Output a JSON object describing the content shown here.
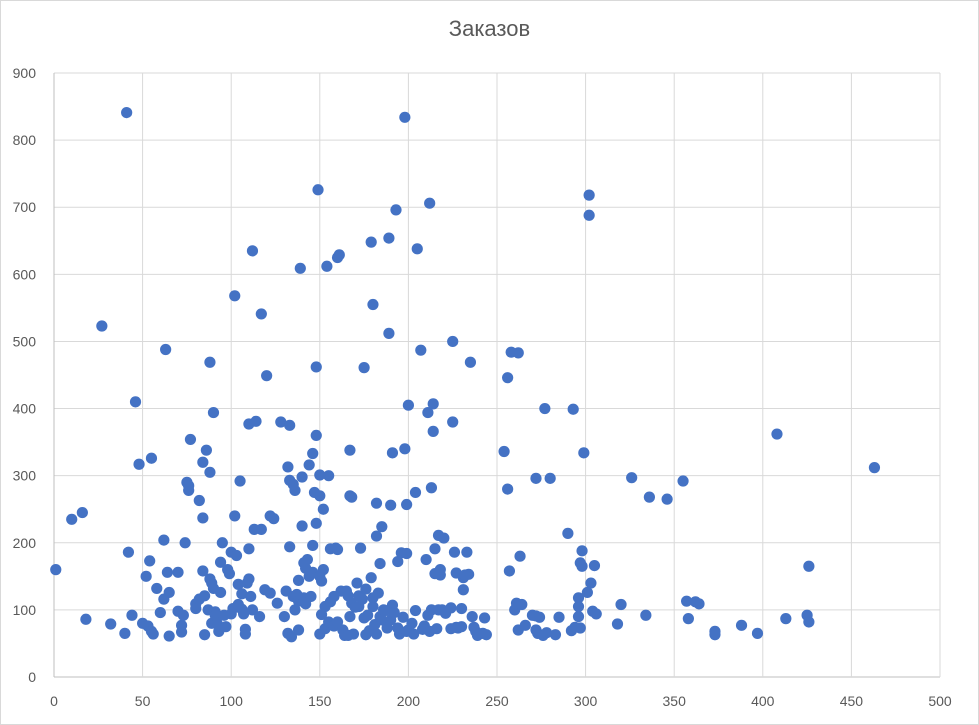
{
  "chart_data": {
    "type": "scatter",
    "title": "Заказов",
    "xlabel": "",
    "ylabel": "",
    "xlim": [
      0,
      500
    ],
    "ylim": [
      0,
      900
    ],
    "x_ticks": [
      0,
      50,
      100,
      150,
      200,
      250,
      300,
      350,
      400,
      450,
      500
    ],
    "y_ticks": [
      0,
      100,
      200,
      300,
      400,
      500,
      600,
      700,
      800,
      900
    ],
    "grid": true,
    "legend": "none",
    "marker_color": "#4472C4",
    "points": [
      [
        1,
        160
      ],
      [
        10,
        235
      ],
      [
        16,
        245
      ],
      [
        18,
        86
      ],
      [
        27,
        523
      ],
      [
        32,
        79
      ],
      [
        40,
        65
      ],
      [
        41,
        841
      ],
      [
        42,
        186
      ],
      [
        44,
        92
      ],
      [
        46,
        410
      ],
      [
        48,
        317
      ],
      [
        50,
        80
      ],
      [
        52,
        150
      ],
      [
        53,
        76
      ],
      [
        54,
        173
      ],
      [
        55,
        68
      ],
      [
        55,
        326
      ],
      [
        56,
        64
      ],
      [
        58,
        132
      ],
      [
        60,
        96
      ],
      [
        62,
        204
      ],
      [
        62,
        116
      ],
      [
        63,
        488
      ],
      [
        64,
        156
      ],
      [
        65,
        126
      ],
      [
        65,
        61
      ],
      [
        70,
        98
      ],
      [
        70,
        156
      ],
      [
        72,
        67
      ],
      [
        72,
        77
      ],
      [
        73,
        92
      ],
      [
        74,
        200
      ],
      [
        75,
        290
      ],
      [
        76,
        278
      ],
      [
        76,
        285
      ],
      [
        77,
        354
      ],
      [
        80,
        109
      ],
      [
        80,
        102
      ],
      [
        82,
        116
      ],
      [
        82,
        263
      ],
      [
        84,
        320
      ],
      [
        84,
        237
      ],
      [
        84,
        158
      ],
      [
        85,
        63
      ],
      [
        85,
        121
      ],
      [
        86,
        338
      ],
      [
        87,
        100
      ],
      [
        88,
        305
      ],
      [
        88,
        469
      ],
      [
        88,
        146
      ],
      [
        89,
        140
      ],
      [
        89,
        80
      ],
      [
        90,
        132
      ],
      [
        90,
        394
      ],
      [
        91,
        97
      ],
      [
        91,
        92
      ],
      [
        92,
        80
      ],
      [
        93,
        68
      ],
      [
        94,
        171
      ],
      [
        94,
        126
      ],
      [
        95,
        200
      ],
      [
        96,
        92
      ],
      [
        97,
        75
      ],
      [
        98,
        160
      ],
      [
        99,
        154
      ],
      [
        100,
        186
      ],
      [
        100,
        94
      ],
      [
        101,
        102
      ],
      [
        102,
        240
      ],
      [
        102,
        568
      ],
      [
        103,
        181
      ],
      [
        104,
        108
      ],
      [
        104,
        138
      ],
      [
        105,
        292
      ],
      [
        106,
        124
      ],
      [
        106,
        101
      ],
      [
        107,
        94
      ],
      [
        108,
        64
      ],
      [
        108,
        71
      ],
      [
        109,
        140
      ],
      [
        110,
        191
      ],
      [
        110,
        146
      ],
      [
        110,
        377
      ],
      [
        111,
        120
      ],
      [
        112,
        635
      ],
      [
        112,
        100
      ],
      [
        113,
        220
      ],
      [
        114,
        381
      ],
      [
        116,
        90
      ],
      [
        117,
        541
      ],
      [
        117,
        220
      ],
      [
        119,
        130
      ],
      [
        120,
        449
      ],
      [
        122,
        240
      ],
      [
        122,
        125
      ],
      [
        124,
        236
      ],
      [
        126,
        110
      ],
      [
        128,
        380
      ],
      [
        130,
        90
      ],
      [
        131,
        128
      ],
      [
        132,
        65
      ],
      [
        132,
        313
      ],
      [
        133,
        194
      ],
      [
        133,
        375
      ],
      [
        133,
        293
      ],
      [
        134,
        60
      ],
      [
        135,
        120
      ],
      [
        135,
        287
      ],
      [
        136,
        278
      ],
      [
        136,
        100
      ],
      [
        137,
        123
      ],
      [
        138,
        144
      ],
      [
        138,
        70
      ],
      [
        138,
        113
      ],
      [
        139,
        609
      ],
      [
        140,
        225
      ],
      [
        140,
        298
      ],
      [
        141,
        118
      ],
      [
        141,
        170
      ],
      [
        142,
        162
      ],
      [
        142,
        109
      ],
      [
        143,
        175
      ],
      [
        144,
        150
      ],
      [
        144,
        316
      ],
      [
        145,
        120
      ],
      [
        146,
        156
      ],
      [
        146,
        333
      ],
      [
        146,
        196
      ],
      [
        147,
        275
      ],
      [
        148,
        229
      ],
      [
        148,
        462
      ],
      [
        148,
        360
      ],
      [
        149,
        726
      ],
      [
        150,
        150
      ],
      [
        150,
        270
      ],
      [
        150,
        301
      ],
      [
        150,
        64
      ],
      [
        151,
        143
      ],
      [
        151,
        93
      ],
      [
        152,
        250
      ],
      [
        152,
        160
      ],
      [
        153,
        72
      ],
      [
        153,
        105
      ],
      [
        154,
        612
      ],
      [
        155,
        300
      ],
      [
        155,
        82
      ],
      [
        156,
        191
      ],
      [
        156,
        112
      ],
      [
        158,
        120
      ],
      [
        158,
        76
      ],
      [
        159,
        192
      ],
      [
        160,
        82
      ],
      [
        160,
        190
      ],
      [
        160,
        625
      ],
      [
        161,
        629
      ],
      [
        162,
        128
      ],
      [
        163,
        70
      ],
      [
        164,
        62
      ],
      [
        165,
        128
      ],
      [
        166,
        121
      ],
      [
        166,
        62
      ],
      [
        167,
        270
      ],
      [
        167,
        338
      ],
      [
        167,
        90
      ],
      [
        168,
        268
      ],
      [
        168,
        110
      ],
      [
        169,
        64
      ],
      [
        170,
        104
      ],
      [
        171,
        140
      ],
      [
        172,
        121
      ],
      [
        172,
        105
      ],
      [
        173,
        192
      ],
      [
        174,
        116
      ],
      [
        175,
        461
      ],
      [
        175,
        88
      ],
      [
        176,
        131
      ],
      [
        176,
        63
      ],
      [
        177,
        92
      ],
      [
        178,
        69
      ],
      [
        179,
        148
      ],
      [
        179,
        648
      ],
      [
        180,
        555
      ],
      [
        180,
        118
      ],
      [
        180,
        105
      ],
      [
        181,
        78
      ],
      [
        182,
        64
      ],
      [
        182,
        210
      ],
      [
        182,
        259
      ],
      [
        183,
        125
      ],
      [
        184,
        169
      ],
      [
        184,
        90
      ],
      [
        185,
        224
      ],
      [
        185,
        85
      ],
      [
        186,
        100
      ],
      [
        187,
        99
      ],
      [
        188,
        73
      ],
      [
        189,
        512
      ],
      [
        189,
        654
      ],
      [
        190,
        256
      ],
      [
        190,
        85
      ],
      [
        191,
        334
      ],
      [
        191,
        107
      ],
      [
        192,
        96
      ],
      [
        193,
        696
      ],
      [
        194,
        172
      ],
      [
        194,
        73
      ],
      [
        195,
        64
      ],
      [
        196,
        185
      ],
      [
        197,
        89
      ],
      [
        198,
        340
      ],
      [
        198,
        834
      ],
      [
        199,
        184
      ],
      [
        199,
        68
      ],
      [
        199,
        257
      ],
      [
        200,
        70
      ],
      [
        200,
        405
      ],
      [
        202,
        80
      ],
      [
        203,
        64
      ],
      [
        204,
        275
      ],
      [
        204,
        99
      ],
      [
        205,
        638
      ],
      [
        207,
        487
      ],
      [
        208,
        71
      ],
      [
        209,
        76
      ],
      [
        210,
        175
      ],
      [
        211,
        92
      ],
      [
        211,
        394
      ],
      [
        212,
        706
      ],
      [
        212,
        68
      ],
      [
        213,
        282
      ],
      [
        213,
        100
      ],
      [
        214,
        407
      ],
      [
        214,
        366
      ],
      [
        215,
        191
      ],
      [
        215,
        154
      ],
      [
        216,
        72
      ],
      [
        217,
        211
      ],
      [
        217,
        100
      ],
      [
        218,
        160
      ],
      [
        218,
        152
      ],
      [
        219,
        100
      ],
      [
        220,
        207
      ],
      [
        221,
        95
      ],
      [
        224,
        103
      ],
      [
        224,
        72
      ],
      [
        225,
        500
      ],
      [
        225,
        380
      ],
      [
        226,
        186
      ],
      [
        227,
        74
      ],
      [
        227,
        155
      ],
      [
        228,
        73
      ],
      [
        230,
        102
      ],
      [
        230,
        75
      ],
      [
        231,
        148
      ],
      [
        231,
        130
      ],
      [
        232,
        152
      ],
      [
        233,
        186
      ],
      [
        234,
        153
      ],
      [
        235,
        469
      ],
      [
        236,
        90
      ],
      [
        237,
        74
      ],
      [
        238,
        68
      ],
      [
        239,
        62
      ],
      [
        242,
        65
      ],
      [
        243,
        88
      ],
      [
        244,
        63
      ],
      [
        254,
        336
      ],
      [
        256,
        446
      ],
      [
        256,
        280
      ],
      [
        257,
        158
      ],
      [
        258,
        484
      ],
      [
        260,
        100
      ],
      [
        261,
        110
      ],
      [
        262,
        70
      ],
      [
        262,
        483
      ],
      [
        263,
        180
      ],
      [
        264,
        108
      ],
      [
        266,
        77
      ],
      [
        270,
        92
      ],
      [
        272,
        296
      ],
      [
        272,
        70
      ],
      [
        272,
        91
      ],
      [
        273,
        65
      ],
      [
        274,
        89
      ],
      [
        276,
        62
      ],
      [
        277,
        400
      ],
      [
        278,
        66
      ],
      [
        280,
        296
      ],
      [
        283,
        63
      ],
      [
        285,
        89
      ],
      [
        290,
        214
      ],
      [
        292,
        69
      ],
      [
        293,
        399
      ],
      [
        294,
        74
      ],
      [
        296,
        118
      ],
      [
        296,
        90
      ],
      [
        296,
        105
      ],
      [
        297,
        170
      ],
      [
        297,
        73
      ],
      [
        298,
        165
      ],
      [
        298,
        188
      ],
      [
        299,
        334
      ],
      [
        301,
        126
      ],
      [
        302,
        718
      ],
      [
        302,
        688
      ],
      [
        303,
        140
      ],
      [
        304,
        98
      ],
      [
        305,
        166
      ],
      [
        306,
        94
      ],
      [
        318,
        79
      ],
      [
        320,
        108
      ],
      [
        326,
        297
      ],
      [
        334,
        92
      ],
      [
        336,
        268
      ],
      [
        346,
        265
      ],
      [
        355,
        292
      ],
      [
        357,
        113
      ],
      [
        358,
        87
      ],
      [
        362,
        112
      ],
      [
        364,
        109
      ],
      [
        373,
        68
      ],
      [
        373,
        63
      ],
      [
        388,
        77
      ],
      [
        397,
        65
      ],
      [
        408,
        362
      ],
      [
        413,
        87
      ],
      [
        425,
        92
      ],
      [
        426,
        82
      ],
      [
        426,
        165
      ],
      [
        463,
        312
      ]
    ]
  }
}
